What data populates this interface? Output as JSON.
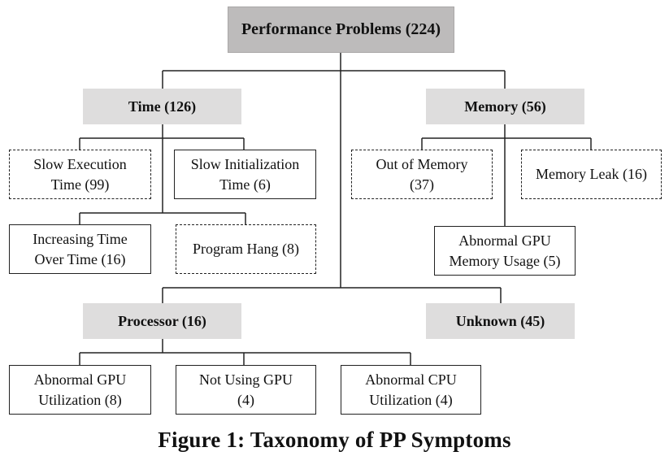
{
  "root": {
    "label": "Performance Problems (224)"
  },
  "categories": {
    "time": {
      "label": "Time (126)"
    },
    "memory": {
      "label": "Memory (56)"
    },
    "processor": {
      "label": "Processor (16)"
    },
    "unknown": {
      "label": "Unknown (45)"
    }
  },
  "symptoms": {
    "slow_execution": {
      "line1": "Slow Execution",
      "line2": "Time (99)"
    },
    "slow_initialization": {
      "line1": "Slow Initialization",
      "line2": "Time (6)"
    },
    "increasing_time": {
      "line1": "Increasing Time",
      "line2": "Over Time (16)"
    },
    "program_hang": {
      "line1": "Program Hang (8)"
    },
    "out_of_memory": {
      "line1": "Out of Memory",
      "line2": "(37)"
    },
    "memory_leak": {
      "line1": "Memory Leak (16)"
    },
    "abnormal_gpu_memory": {
      "line1": "Abnormal GPU",
      "line2": "Memory Usage (5)"
    },
    "abnormal_gpu_utilization": {
      "line1": "Abnormal GPU",
      "line2": "Utilization (8)"
    },
    "not_using_gpu": {
      "line1": "Not Using GPU",
      "line2": "(4)"
    },
    "abnormal_cpu_utilization": {
      "line1": "Abnormal CPU",
      "line2": "Utilization (4)"
    }
  },
  "caption": "Figure 1: Taxonomy of PP Symptoms"
}
